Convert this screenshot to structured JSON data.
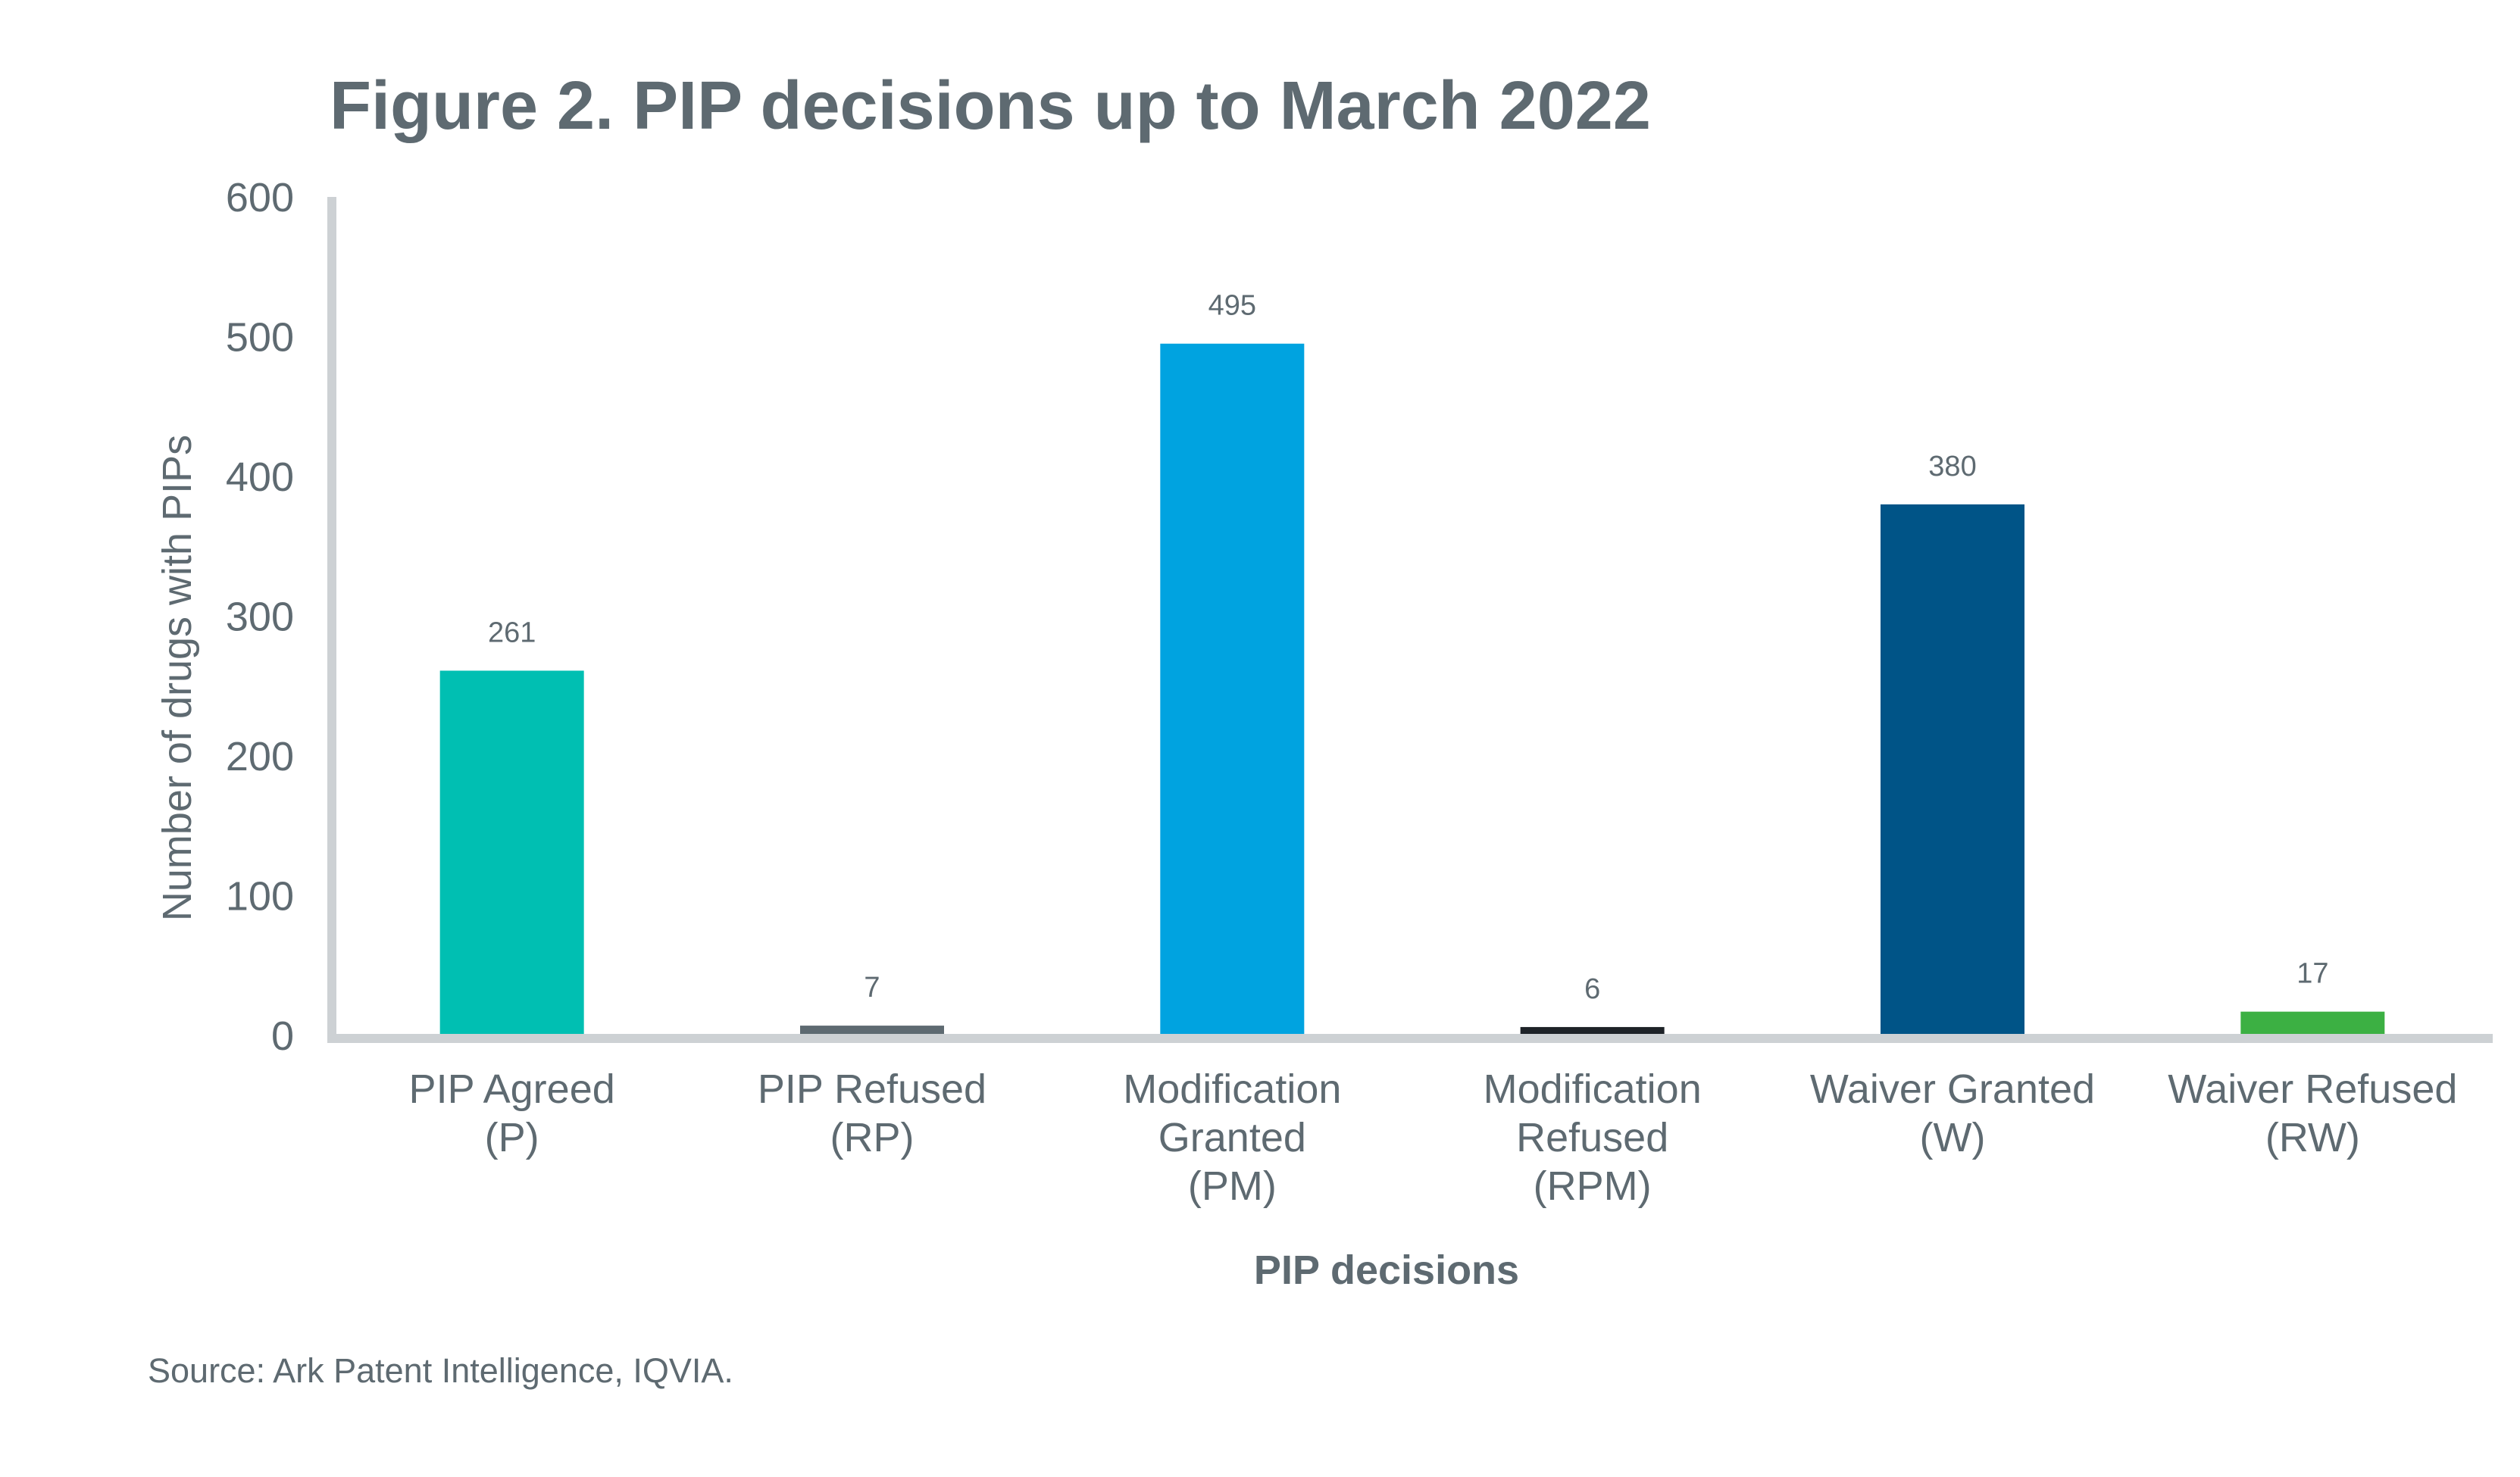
{
  "chart_data": {
    "type": "bar",
    "title": "Figure 2. PIP decisions up to March 2022",
    "xlabel": "PIP decisions",
    "ylabel": "Number of drugs with PIPs",
    "ylim": [
      0,
      600
    ],
    "yticks": [
      "0",
      "100",
      "200",
      "300",
      "400",
      "500",
      "600"
    ],
    "grid": false,
    "categories": [
      [
        "PIP Agreed",
        "(P)"
      ],
      [
        "PIP Refused",
        "(RP)"
      ],
      [
        "Modification",
        "Granted",
        "(PM)"
      ],
      [
        "Modification",
        "Refused",
        "(RPM)"
      ],
      [
        "Waiver Granted",
        "(W)"
      ],
      [
        "Waiver Refused",
        "(RW)"
      ]
    ],
    "values": [
      261,
      7,
      495,
      6,
      380,
      17
    ],
    "data_labels": [
      "261",
      "7",
      "495",
      "6",
      "380",
      "17"
    ],
    "colors": [
      "#00bfb2",
      "#5e6a71",
      "#00a3e0",
      "#1e2328",
      "#005487",
      "#3cb043"
    ]
  },
  "source": "Source: Ark Patent Intelligence, IQVIA.",
  "theme": {
    "text_color": "#5e6a71",
    "axis_color": "#cdd1d4"
  }
}
